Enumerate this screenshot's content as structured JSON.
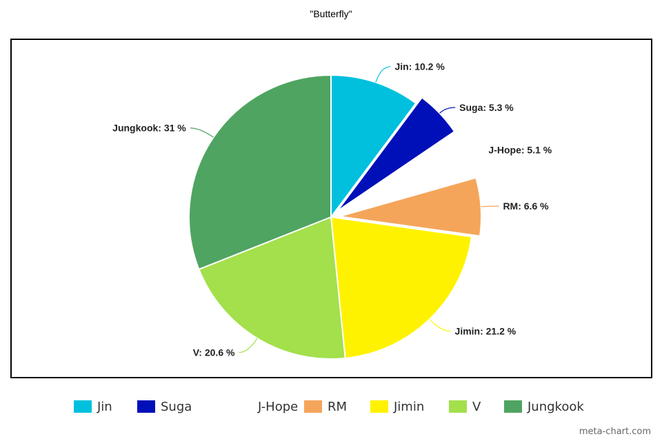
{
  "chart_data": {
    "type": "pie",
    "title": "\"Butterfly\"",
    "unit": "%",
    "categories": [
      "Jin",
      "Suga",
      "J-Hope",
      "RM",
      "Jimin",
      "V",
      "Jungkook"
    ],
    "values": [
      10.2,
      5.3,
      5.1,
      6.6,
      21.2,
      20.6,
      31
    ],
    "labels": [
      "Jin: 10.2 %",
      "Suga: 5.3 %",
      "J-Hope: 5.1 %",
      "RM: 6.6 %",
      "Jimin: 21.2 %",
      "V: 20.6 %",
      "Jungkook: 31 %"
    ],
    "colors": [
      "#00c0de",
      "#0010b8",
      "#ffffff",
      "#f5a55a",
      "#fff200",
      "#a3e04c",
      "#4fa461"
    ],
    "exploded": [
      "Suga",
      "RM"
    ],
    "legend_placement": "bottom"
  },
  "watermark": "meta-chart.com"
}
